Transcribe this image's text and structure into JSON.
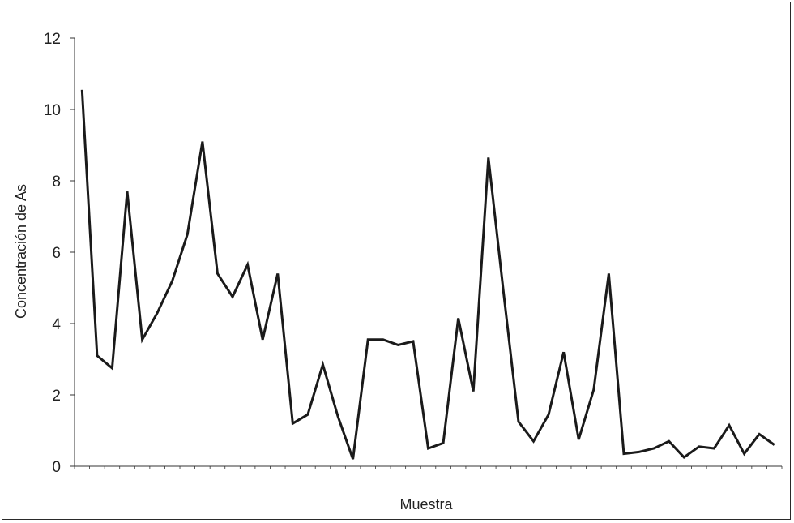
{
  "chart_data": {
    "type": "line",
    "title": "",
    "xlabel": "Muestra",
    "ylabel": "Concentración de As",
    "ylim": [
      0,
      12
    ],
    "yticks": [
      0,
      2,
      4,
      6,
      8,
      10,
      12
    ],
    "grid": false,
    "legend": "none",
    "series": [
      {
        "values": [
          10.55,
          3.1,
          2.75,
          7.7,
          3.55,
          4.3,
          5.2,
          6.5,
          9.1,
          5.4,
          4.75,
          5.65,
          3.55,
          5.4,
          1.2,
          1.45,
          2.85,
          1.4,
          0.2,
          3.55,
          3.55,
          3.4,
          3.5,
          0.5,
          0.65,
          4.15,
          2.1,
          8.65,
          4.9,
          1.25,
          0.7,
          1.45,
          3.2,
          0.75,
          2.15,
          5.4,
          0.35,
          0.4,
          0.5,
          0.7,
          0.25,
          0.55,
          0.5,
          1.15,
          0.35,
          0.9,
          0.6
        ]
      }
    ],
    "colors": {
      "line": "#1a1a1a",
      "axis": "#333333"
    }
  }
}
